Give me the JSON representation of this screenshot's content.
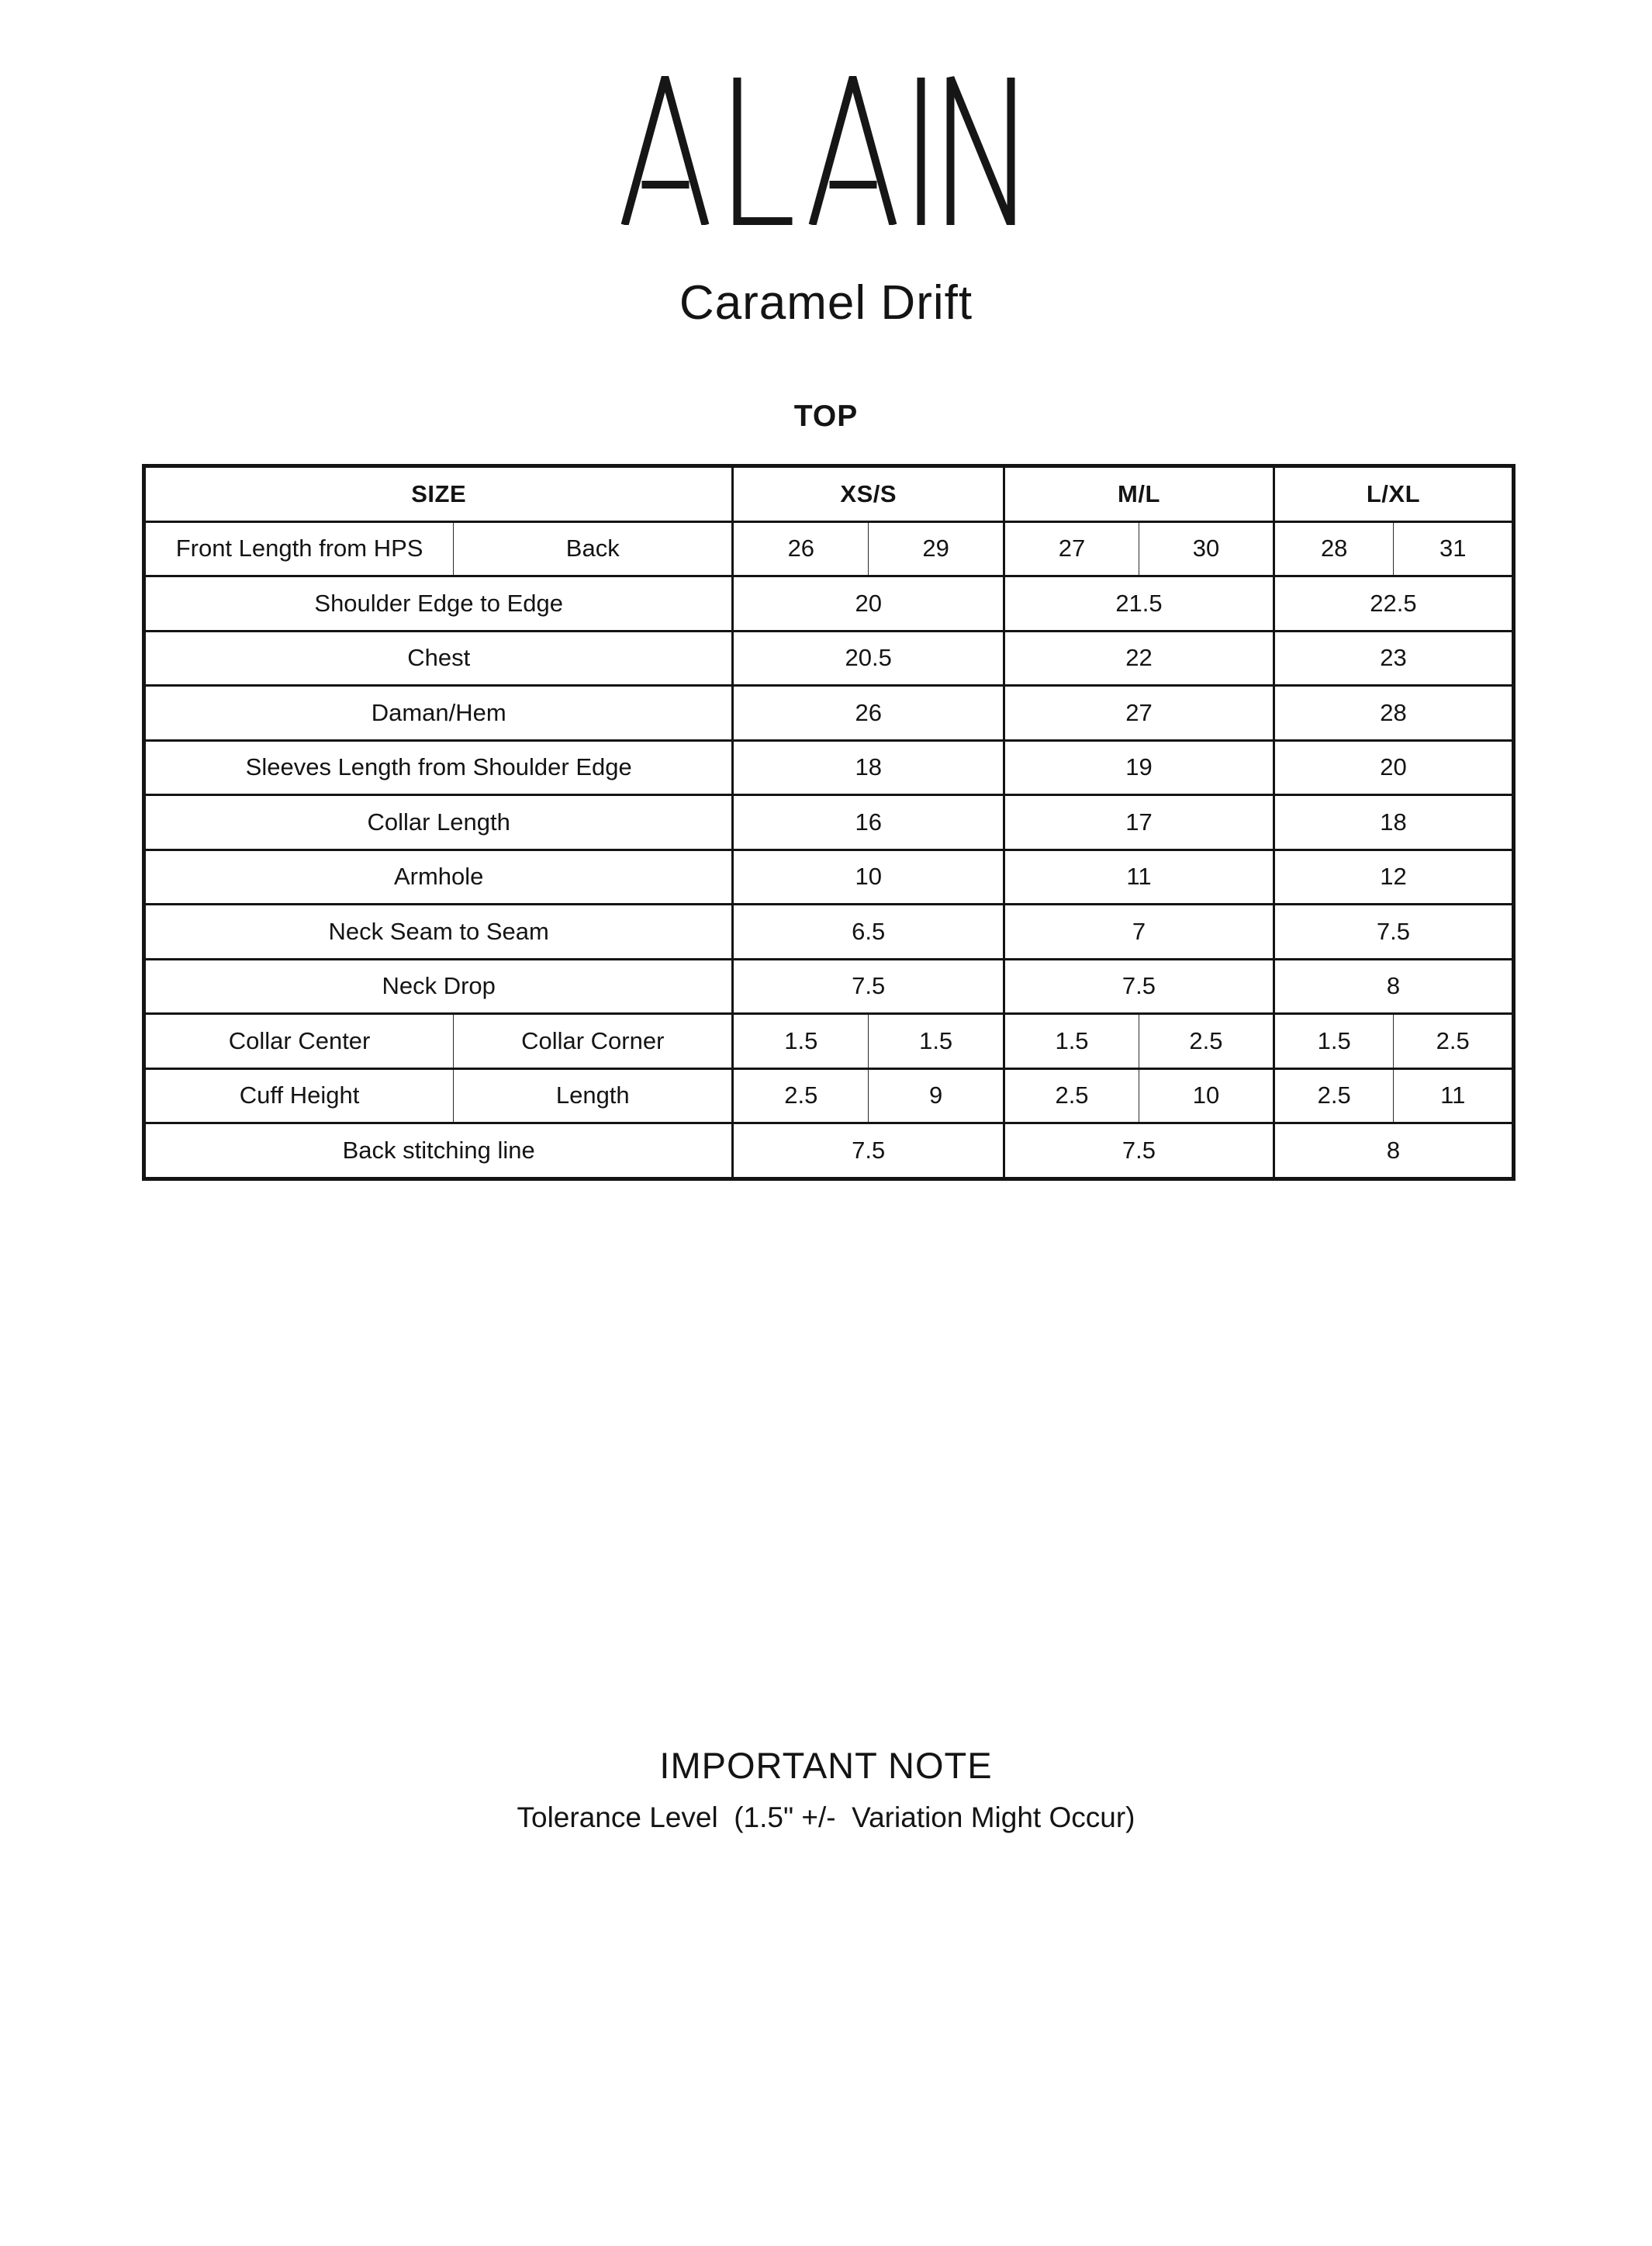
{
  "brand": "ALAIN",
  "product": "Caramel Drift",
  "category": "TOP",
  "table": {
    "header": {
      "size_label": "SIZE",
      "columns": [
        "XS/S",
        "M/L",
        "L/XL"
      ]
    },
    "rows": [
      {
        "type": "split",
        "label_left": "Front Length from HPS",
        "label_right": "Back",
        "values": [
          [
            "26",
            "29"
          ],
          [
            "27",
            "30"
          ],
          [
            "28",
            "31"
          ]
        ]
      },
      {
        "type": "merged",
        "label": "Shoulder Edge to Edge",
        "values": [
          "20",
          "21.5",
          "22.5"
        ]
      },
      {
        "type": "merged",
        "label": "Chest",
        "values": [
          "20.5",
          "22",
          "23"
        ]
      },
      {
        "type": "merged",
        "label": "Daman/Hem",
        "values": [
          "26",
          "27",
          "28"
        ]
      },
      {
        "type": "merged",
        "label": "Sleeves Length from Shoulder Edge",
        "values": [
          "18",
          "19",
          "20"
        ]
      },
      {
        "type": "merged",
        "label": "Collar Length",
        "values": [
          "16",
          "17",
          "18"
        ]
      },
      {
        "type": "merged",
        "label": "Armhole",
        "values": [
          "10",
          "11",
          "12"
        ]
      },
      {
        "type": "merged",
        "label": "Neck Seam to Seam",
        "values": [
          "6.5",
          "7",
          "7.5"
        ]
      },
      {
        "type": "merged",
        "label": "Neck Drop",
        "values": [
          "7.5",
          "7.5",
          "8"
        ]
      },
      {
        "type": "split",
        "label_left": "Collar Center",
        "label_right": "Collar Corner",
        "values": [
          [
            "1.5",
            "1.5"
          ],
          [
            "1.5",
            "2.5"
          ],
          [
            "1.5",
            "2.5"
          ]
        ]
      },
      {
        "type": "split",
        "label_left": "Cuff Height",
        "label_right": "Length",
        "values": [
          [
            "2.5",
            "9"
          ],
          [
            "2.5",
            "10"
          ],
          [
            "2.5",
            "11"
          ]
        ]
      },
      {
        "type": "merged",
        "label": "Back stitching line",
        "values": [
          "7.5",
          "7.5",
          "8"
        ]
      }
    ]
  },
  "note": {
    "title": "IMPORTANT NOTE",
    "body": "Tolerance Level  (1.5\" +/-  Variation Might Occur)"
  },
  "colors": {
    "ink": "#141414",
    "background": "#ffffff"
  }
}
